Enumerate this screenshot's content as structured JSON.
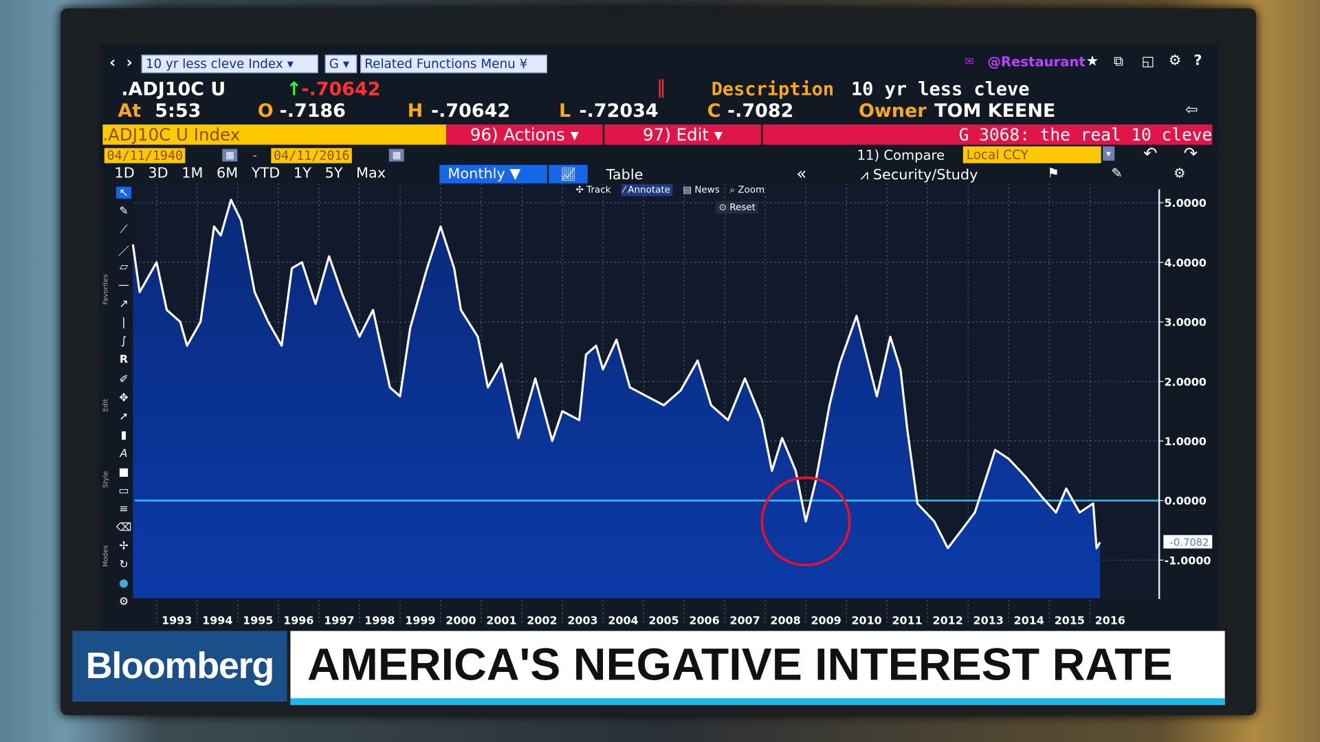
{
  "header": {
    "nav_back": "‹",
    "nav_fwd": "›",
    "security_field": "10 yr less cleve Index",
    "function_field": "G",
    "related_menu": "Related Functions Menu",
    "user_tag": "@Restaurant",
    "ticker": ".ADJ10C U",
    "last": "-.70642",
    "time_label": "At",
    "time": "5:53",
    "open_label": "O",
    "open": "-.7186",
    "high_label": "H",
    "high": "-.70642",
    "low_label": "L",
    "low": "-.72034",
    "close_label": "C",
    "close": "-.7082",
    "description_label": "Description",
    "description": "10 yr less cleve",
    "owner_label": "Owner",
    "owner": "TOM KEENE"
  },
  "actionbar": {
    "security": ".ADJ10C U Index",
    "actions": "96) Actions",
    "edit": "97) Edit",
    "chart_name": "G 3068: the real 10 cleve"
  },
  "datebar": {
    "start": "04/11/1940",
    "sep": "-",
    "end": "04/11/2016",
    "compare": "11) Compare",
    "currency": "Local CCY"
  },
  "periods": [
    "1D",
    "3D",
    "1M",
    "6M",
    "YTD",
    "1Y",
    "5Y",
    "Max"
  ],
  "frequency": "Monthly",
  "table_label": "Table",
  "collapse": "«",
  "security_study": "Security/Study",
  "chart_tools": {
    "track": "Track",
    "annotate": "Annotate",
    "news": "News",
    "zoom": "Zoom",
    "reset": "Reset"
  },
  "side_labels": {
    "favorites": "Favorites",
    "edit": "Edit",
    "style": "Style",
    "modes": "Modes"
  },
  "lower_third": {
    "brand": "Bloomberg",
    "headline": "AMERICA'S NEGATIVE INTEREST RATE"
  },
  "colors": {
    "area": "#0a2f8a",
    "line": "#ffffff",
    "zero_line": "#27d0f0",
    "annotation_circle": "#e8102a",
    "accent_yellow": "#ffc800",
    "accent_pink": "#e0154a"
  },
  "chart_data": {
    "type": "area",
    "ylim": [
      -1.6,
      5.3
    ],
    "xlim": [
      "1992-06",
      "2017-09"
    ],
    "yticks": [
      "5.0000",
      "4.0000",
      "3.0000",
      "2.0000",
      "1.0000",
      "0.0000",
      "-1.0000"
    ],
    "ytick_values": [
      5,
      4,
      3,
      2,
      1,
      0,
      -1
    ],
    "xticks": [
      "1993",
      "1994",
      "1995",
      "1996",
      "1997",
      "1998",
      "1999",
      "2000",
      "2001",
      "2002",
      "2003",
      "2004",
      "2005",
      "2006",
      "2007",
      "2008",
      "2009",
      "2010",
      "2011",
      "2012",
      "2013",
      "2014",
      "2015",
      "2016"
    ],
    "grid": true,
    "last_value_label": "-0.7082",
    "reference_line": 0,
    "annotation": {
      "type": "circle",
      "x": "2009-01",
      "y": -0.35
    },
    "x": [
      "1992-06",
      "1992-08",
      "1993-01",
      "1993-04",
      "1993-08",
      "1993-10",
      "1994-02",
      "1994-06",
      "1994-08",
      "1994-11",
      "1995-02",
      "1995-06",
      "1995-10",
      "1996-02",
      "1996-05",
      "1996-08",
      "1996-12",
      "1997-04",
      "1997-08",
      "1998-01",
      "1998-05",
      "1998-10",
      "1999-01",
      "1999-04",
      "1999-09",
      "2000-01",
      "2000-05",
      "2000-07",
      "2000-12",
      "2001-03",
      "2001-07",
      "2001-12",
      "2002-05",
      "2002-10",
      "2003-01",
      "2003-06",
      "2003-08",
      "2003-11",
      "2004-01",
      "2004-05",
      "2004-09",
      "2005-02",
      "2005-07",
      "2005-12",
      "2006-05",
      "2006-09",
      "2007-02",
      "2007-07",
      "2007-12",
      "2008-03",
      "2008-06",
      "2008-10",
      "2009-01",
      "2009-04",
      "2009-08",
      "2009-11",
      "2010-04",
      "2010-08",
      "2010-10",
      "2011-02",
      "2011-05",
      "2011-07",
      "2011-10",
      "2012-03",
      "2012-07",
      "2012-11",
      "2013-03",
      "2013-07",
      "2013-09",
      "2014-01",
      "2014-06",
      "2014-11",
      "2015-03",
      "2015-06",
      "2015-10",
      "2016-02",
      "2016-03",
      "2016-04"
    ],
    "y": [
      4.3,
      3.5,
      4.0,
      3.2,
      3.0,
      2.6,
      3.0,
      4.6,
      4.45,
      5.05,
      4.7,
      3.5,
      3.0,
      2.6,
      3.9,
      4.0,
      3.3,
      4.1,
      3.45,
      2.75,
      3.2,
      1.9,
      1.75,
      2.9,
      3.9,
      4.6,
      3.9,
      3.2,
      2.75,
      1.9,
      2.3,
      1.05,
      2.05,
      1.0,
      1.5,
      1.35,
      2.45,
      2.6,
      2.2,
      2.7,
      1.9,
      1.75,
      1.6,
      1.85,
      2.35,
      1.6,
      1.35,
      2.05,
      1.35,
      0.5,
      1.05,
      0.5,
      -0.35,
      0.35,
      1.6,
      2.3,
      3.1,
      2.2,
      1.75,
      2.75,
      2.2,
      1.2,
      -0.05,
      -0.35,
      -0.8,
      -0.5,
      -0.2,
      0.5,
      0.85,
      0.7,
      0.4,
      0.05,
      -0.2,
      0.2,
      -0.2,
      -0.05,
      -0.8,
      -0.7
    ]
  }
}
